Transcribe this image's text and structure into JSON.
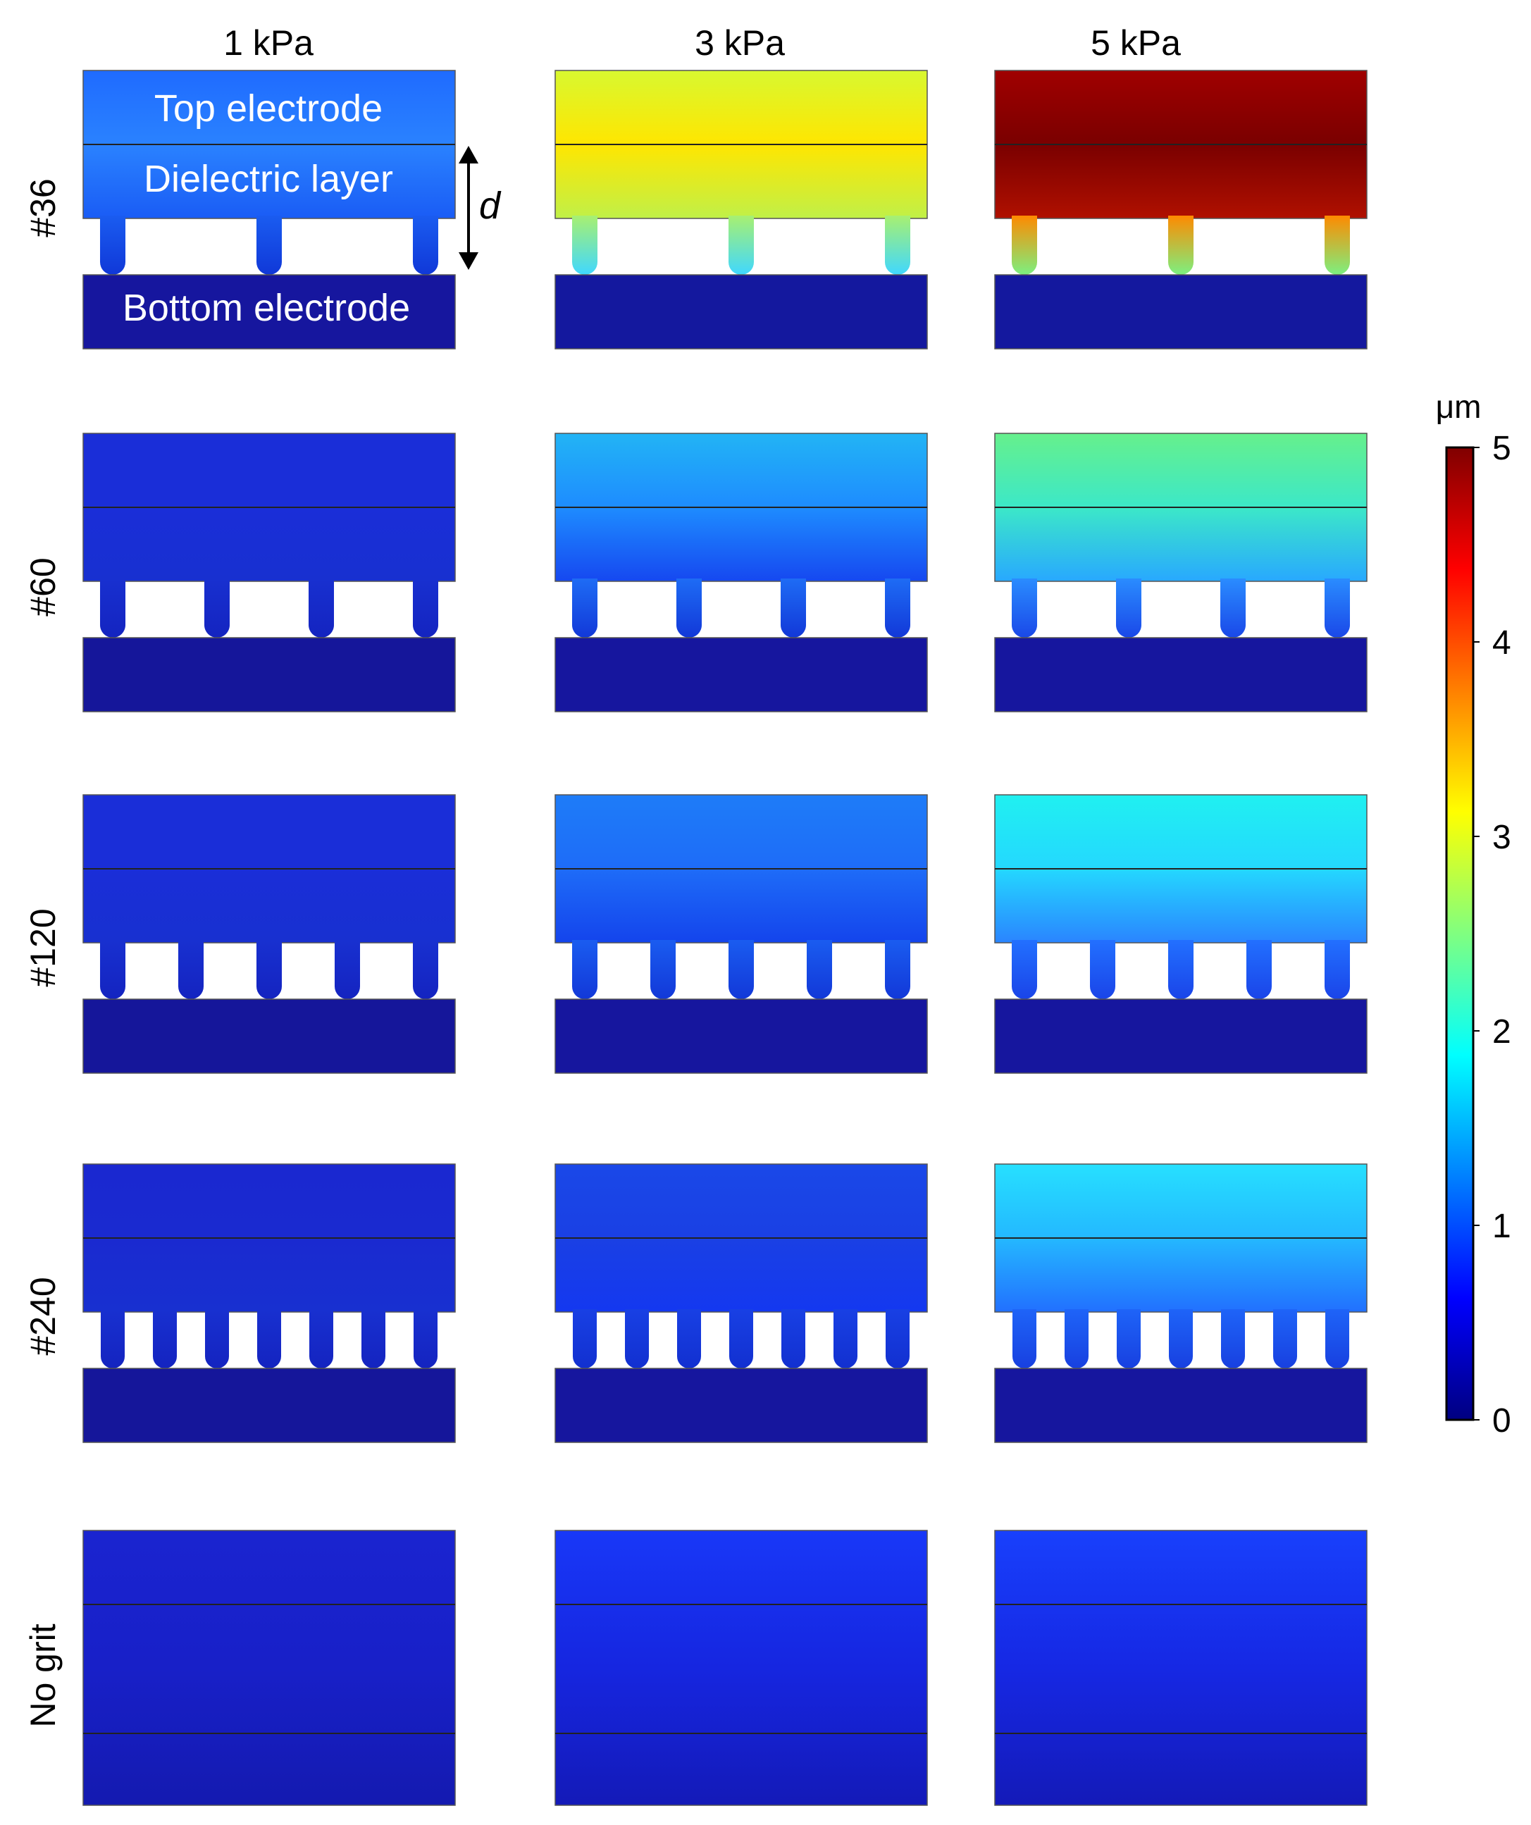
{
  "columns": [
    "1 kPa",
    "3 kPa",
    "5 kPa"
  ],
  "rows": [
    {
      "label": "#36",
      "post_count": 3,
      "panels": [
        {
          "top_colors": [
            "#1f6bff",
            "#2a82ff",
            "#1a5cf5"
          ],
          "post_top": "#1a5cf0",
          "post_bottom": "#1038d8",
          "bottom_color": "#16169e"
        },
        {
          "top_colors": [
            "#d8f830",
            "#ffe600",
            "#c0f048"
          ],
          "post_top": "#a8f070",
          "post_bottom": "#40d8ff",
          "bottom_color": "#14189e"
        },
        {
          "top_colors": [
            "#a00000",
            "#7a0000",
            "#b01000"
          ],
          "post_top": "#ff8a00",
          "post_bottom": "#7cf080",
          "bottom_color": "#14189e"
        }
      ]
    },
    {
      "label": "#60",
      "post_count": 4,
      "panels": [
        {
          "top_colors": [
            "#1a2ed8",
            "#1a2ed8",
            "#1830d0"
          ],
          "post_top": "#1830d0",
          "post_bottom": "#1424c0",
          "bottom_color": "#15169a"
        },
        {
          "top_colors": [
            "#22b4f5",
            "#1e8cff",
            "#1648f0"
          ],
          "post_top": "#1e6cf5",
          "post_bottom": "#1238d8",
          "bottom_color": "#16169e"
        },
        {
          "top_colors": [
            "#66f08c",
            "#3ce8c8",
            "#28a8ff"
          ],
          "post_top": "#2a8cff",
          "post_bottom": "#1a48e8",
          "bottom_color": "#16169e"
        }
      ]
    },
    {
      "label": "#120",
      "post_count": 5,
      "panels": [
        {
          "top_colors": [
            "#1a2ed8",
            "#1a2ed8",
            "#1830d0"
          ],
          "post_top": "#1830d0",
          "post_bottom": "#1424c0",
          "bottom_color": "#15169a"
        },
        {
          "top_colors": [
            "#1e7cf8",
            "#1e6cf8",
            "#1444ec"
          ],
          "post_top": "#1a5cf0",
          "post_bottom": "#1238d8",
          "bottom_color": "#16169e"
        },
        {
          "top_colors": [
            "#20f0f0",
            "#24d8ff",
            "#2a84ff"
          ],
          "post_top": "#2270ff",
          "post_bottom": "#1a44e8",
          "bottom_color": "#16169e"
        }
      ]
    },
    {
      "label": "#240",
      "post_count": 7,
      "panels": [
        {
          "top_colors": [
            "#1a28d0",
            "#1a2ad0",
            "#1830d0"
          ],
          "post_top": "#1830d0",
          "post_bottom": "#1424c0",
          "bottom_color": "#15169a"
        },
        {
          "top_colors": [
            "#1a48e8",
            "#1a40e4",
            "#1438f0"
          ],
          "post_top": "#1840e4",
          "post_bottom": "#1230d0",
          "bottom_color": "#16169e"
        },
        {
          "top_colors": [
            "#26e0ff",
            "#24b8ff",
            "#2270ff"
          ],
          "post_top": "#1e64f8",
          "post_bottom": "#1840e0",
          "bottom_color": "#16169e"
        }
      ]
    },
    {
      "label": "No grit",
      "post_count": 0,
      "panels": [
        {
          "top_colors": [
            "#1a24d0",
            "#1820c8",
            "#141ab0"
          ],
          "post_top": "",
          "post_bottom": "",
          "bottom_color": "#12149a"
        },
        {
          "top_colors": [
            "#1838f8",
            "#1626e0",
            "#141ab8"
          ],
          "post_top": "",
          "post_bottom": "",
          "bottom_color": "#12149a"
        },
        {
          "top_colors": [
            "#1840fc",
            "#1628e4",
            "#141ab8"
          ],
          "post_top": "",
          "post_bottom": "",
          "bottom_color": "#12149a"
        }
      ]
    }
  ],
  "annotations": {
    "top_electrode": "Top electrode",
    "dielectric_layer": "Dielectric layer",
    "bottom_electrode": "Bottom electrode",
    "gap_symbol": "d"
  },
  "colorbar": {
    "unit": "μm",
    "ticks": [
      "0",
      "1",
      "2",
      "3",
      "4",
      "5"
    ],
    "min": 0,
    "max": 5,
    "colormap": [
      "#000080",
      "#0000ff",
      "#0080ff",
      "#00ffff",
      "#80ff80",
      "#ffff00",
      "#ff8000",
      "#ff0000",
      "#800000"
    ]
  }
}
